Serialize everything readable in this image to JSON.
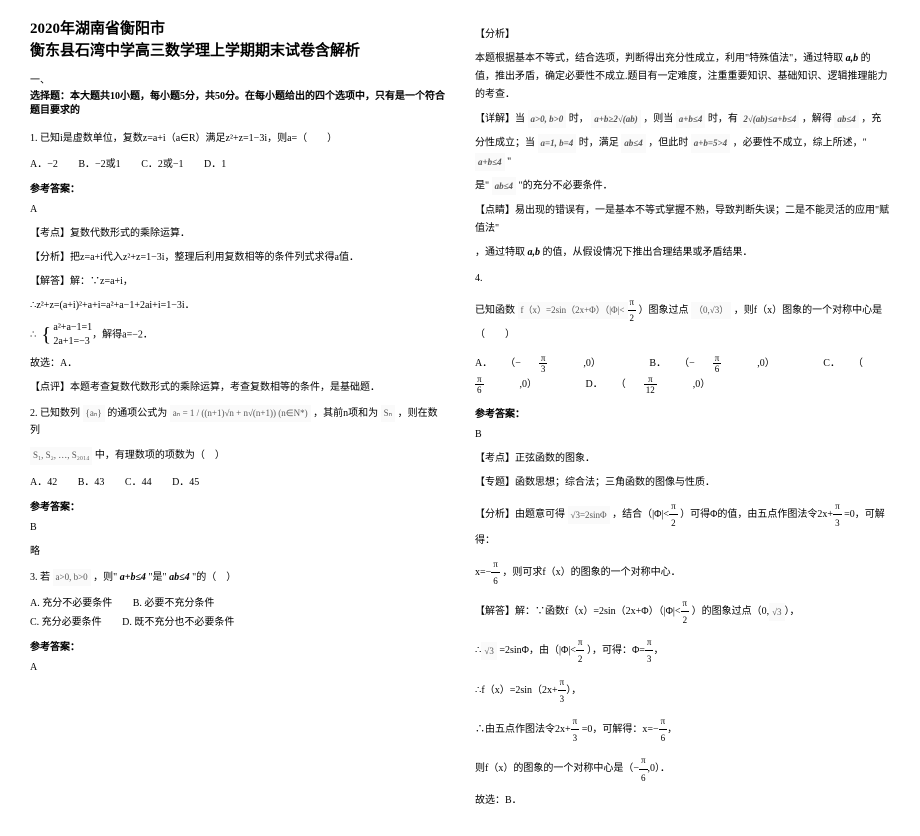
{
  "header": {
    "title_line1": "2020年湖南省衡阳市",
    "title_line2": "衡东县石湾中学高三数学理上学期期末试卷含解析"
  },
  "section": {
    "label": "一、",
    "instruction": "选择题：本大题共10小题，每小题5分，共50分。在每小题给出的四个选项中，只有是一个符合题目要求的"
  },
  "q1": {
    "stem": "1. 已知i是虚数单位，复数z=a+i（a∈R）满足z²+z=1−3i，则a=（　　）",
    "opts": {
      "A": "A．−2",
      "B": "B．−2或1",
      "C": "C．2或−1",
      "D": "D．1"
    },
    "ans_label": "参考答案：",
    "ans": "A",
    "point_label": "【考点】复数代数形式的乘除运算．",
    "analy_label": "【分析】把z=a+i代入z²+z=1−3i，整理后利用复数相等的条件列式求得a值．",
    "solve_label": "【解答】解：∵z=a+i，",
    "solve_line1": "∴z²+z=(a+i)²+a+i=a²+a−1+2ai+i=1−3i．",
    "brace1": "a²+a−1=1",
    "brace2": "2a+1=−3",
    "solve_line2": "，解得a=−2．",
    "then": "故选：A．",
    "review": "【点评】本题考查复数代数形式的乘除运算，考查复数相等的条件，是基础题．"
  },
  "q2": {
    "stem_pre": "2. 已知数列",
    "an": "{aₙ}",
    "stem_mid1": "的通项公式为",
    "formula": "aₙ = 1 / ((n+1)√n + n√(n+1))  (n∈N*)",
    "stem_mid2": "，其前n项和为",
    "sn": "Sₙ",
    "stem_post": "，则在数列",
    "line2_pre": "S₁, S₂, …, S₂₀₁₄",
    "line2_post": "中，有理数项的项数为（　）",
    "opts": {
      "A": "A．42",
      "B": "B．43",
      "C": "C．44",
      "D": "D．45"
    },
    "ans_label": "参考答案：",
    "ans": "B",
    "skip": "略"
  },
  "q3": {
    "stem_pre": "3. 若",
    "cond": "a>0, b>0",
    "stem_mid": "，则\"",
    "c1": "a+b≤4",
    "mid2": "\"是\"",
    "c2": "ab≤4",
    "stem_post": "\"的（　）",
    "opts": {
      "A": "A. 充分不必要条件",
      "B": "B. 必要不充分条件",
      "C": "C. 充分必要条件",
      "D": "D. 既不充分也不必要条件"
    },
    "ans_label": "参考答案：",
    "ans": "A"
  },
  "right": {
    "analy_label": "【分析】",
    "analy1": "本题根据基本不等式，结合选项，判断得出充分性成立，利用\"特殊值法\"，通过特取",
    "ab": "a,b",
    "analy1b": "的值，推出矛盾，确定必要性不成立.题目有一定难度，注重重要知识、基础知识、逻辑推理能力的考查．",
    "detail_label": "【详解】当",
    "d1": "a>0, b>0",
    "d1t": "时，",
    "d2": "a+b≥2√(ab)",
    "d2t": "，则当",
    "d3": "a+b≤4",
    "d3t": "时，有",
    "d4": "2√(ab)≤a+b≤4",
    "d4t": "，解得",
    "d5": "ab≤4",
    "d5t": "，充",
    "line2a": "分性成立；当",
    "d6": "a=1, b=4",
    "d6t": "时，满足",
    "d7": "ab≤4",
    "d7t": "，但此时",
    "d8": "a+b=5>4",
    "d8t": "，必要性不成立，综上所述，\"",
    "d9": "a+b≤4",
    "d9t": "\"",
    "line3a": "是\"",
    "d10": "ab≤4",
    "line3b": "\"的充分不必要条件．",
    "hint_label": "【点睛】易出现的错误有，一是基本不等式掌握不熟，导致判断失误；二是不能灵活的应用\"赋值法\"",
    "hint2a": "，通过特取",
    "hint2b": "的值，从假设情况下推出合理结果或矛盾结果．"
  },
  "q4": {
    "num": "4.",
    "pre": "已知函数",
    "fx": "f（x）=2sin（2x+Φ）（|Φ|<",
    "half_pi_n": "π",
    "half_pi_d": "2",
    "mid1": "）图象过点",
    "pt": "（0,√3）",
    "post": "，则f（x）图象的一个对称中心是（　　）",
    "optA_l": "A．",
    "optA_n": "π",
    "optA_d": "3",
    "optA_pre": "（−",
    "optA_suf": ",0）",
    "optB_l": "B．",
    "optB_n": "π",
    "optB_d": "6",
    "optB_pre": "（−",
    "optB_suf": ",0）",
    "optC_l": "C．",
    "optC_n": "π",
    "optC_d": "6",
    "optC_pre": "（",
    "optC_suf": ",0）",
    "optD_l": "D．",
    "optD_n": "π",
    "optD_d": "12",
    "optD_pre": "（",
    "optD_suf": ",0）",
    "ans_label": "参考答案：",
    "ans": "B",
    "point": "【考点】正弦函数的图象．",
    "topic": "【专题】函数思想；综合法；三角函数的图像与性质．",
    "analy_pre": "【分析】由题意可得",
    "analy_f1": "√3=2sinΦ",
    "analy_mid1": "，结合（|Φ|<",
    "analy_mid2": "）可得Φ的值，由五点作图法令2x+",
    "analy_mid3": "=0，可解得：",
    "line_x": "x=−",
    "line_x_n": "π",
    "line_x_d": "6",
    "line_x_t": "，则可求f（x）的图象的一个对称中心．",
    "solve_label": "【解答】解：∵函数f（x）=2sin（2x+Φ）（|Φ|<",
    "solve_1": "）的图象过点（0,",
    "solve_1b": "√3",
    "solve_1c": "），",
    "s2a": "∴",
    "s2b": "√3",
    "s2c": "=2sinΦ，由（|Φ|<",
    "s2d": "），可得：Φ=",
    "s2e_n": "π",
    "s2e_d": "3",
    "s2e_t": "，",
    "s3": "∴f（x）=2sin（2x+",
    "s3n": "π",
    "s3d": "3",
    "s3t": "），",
    "s4": "∴由五点作图法令2x+",
    "s4n": "π",
    "s4d": "3",
    "s4m": "=0，可解得：x=−",
    "s4n2": "π",
    "s4d2": "6",
    "s4t": "，",
    "s5": "则f（x）的图象的一个对称中心是（−",
    "s5n": "π",
    "s5d": "6",
    "s5t": ",0）．",
    "s6": "故选：B．"
  }
}
